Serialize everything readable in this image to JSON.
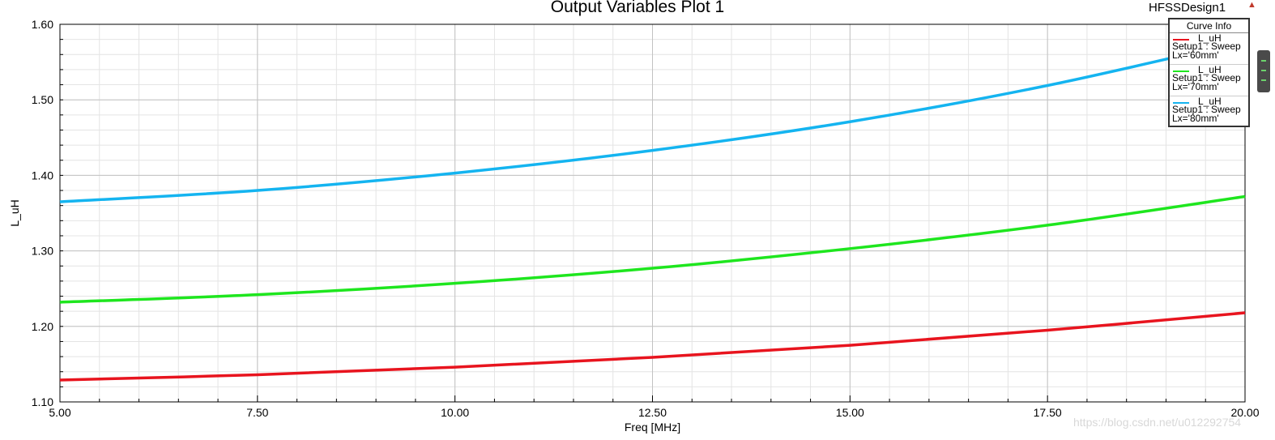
{
  "header": {
    "title": "Output Variables Plot 1",
    "design_name": "HFSSDesign1"
  },
  "legend": {
    "title": "Curve Info",
    "items": [
      {
        "name": "L_uH",
        "setup": "Setup1 : Sweep",
        "param": "Lx='60mm'",
        "color": "#e8141e"
      },
      {
        "name": "L_uH",
        "setup": "Setup1 : Sweep",
        "param": "Lx='70mm'",
        "color": "#1ee61e"
      },
      {
        "name": "L_uH",
        "setup": "Setup1 : Sweep",
        "param": "Lx='80mm'",
        "color": "#14b4f0"
      }
    ]
  },
  "watermark": "https://blog.csdn.net/u012292754",
  "chart_data": {
    "type": "line",
    "title": "Output Variables Plot 1",
    "xlabel": "Freq [MHz]",
    "ylabel": "L_uH",
    "xlim": [
      5.0,
      20.0
    ],
    "ylim": [
      1.1,
      1.6
    ],
    "x_ticks": [
      "5.00",
      "7.50",
      "10.00",
      "12.50",
      "15.00",
      "17.50",
      "20.00"
    ],
    "y_ticks": [
      "1.10",
      "1.20",
      "1.30",
      "1.40",
      "1.50",
      "1.60"
    ],
    "grid": true,
    "legend_position": "top-right",
    "x": [
      5,
      7.5,
      10,
      12.5,
      15,
      17.5,
      20
    ],
    "series": [
      {
        "name": "L_uH Setup1 : Sweep Lx='60mm'",
        "color": "#e8141e",
        "values": [
          1.129,
          1.136,
          1.146,
          1.159,
          1.175,
          1.195,
          1.218
        ]
      },
      {
        "name": "L_uH Setup1 : Sweep Lx='70mm'",
        "color": "#1ee61e",
        "values": [
          1.232,
          1.242,
          1.257,
          1.277,
          1.303,
          1.334,
          1.372
        ]
      },
      {
        "name": "L_uH Setup1 : Sweep Lx='80mm'",
        "color": "#14b4f0",
        "values": [
          1.365,
          1.38,
          1.403,
          1.433,
          1.471,
          1.519,
          1.578
        ]
      }
    ]
  }
}
